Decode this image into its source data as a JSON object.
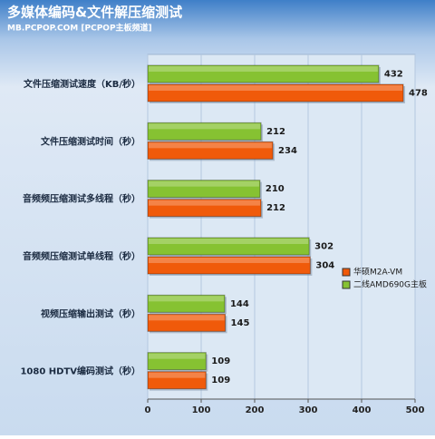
{
  "chart_data": {
    "type": "hbar",
    "title": "多媒体编码&文件解压缩测试",
    "subtitle": "MB.PCPOP.COM [PCPOP主板频道]",
    "categories": [
      "文件压缩测试速度（KB/秒）",
      "文件压缩测试时间（秒）",
      "音频频压缩测试多线程（秒）",
      "音频频压缩测试单线程（秒）",
      "视频压缩输出测试（秒）",
      "1080 HDTV编码测试（秒）"
    ],
    "series": [
      {
        "name": "华硕M2A-VM",
        "color": "#f05a0a",
        "values": [
          478,
          234,
          212,
          304,
          145,
          109
        ]
      },
      {
        "name": "二线AMD690G主板",
        "color": "#86c232",
        "values": [
          432,
          212,
          210,
          302,
          144,
          109
        ]
      }
    ],
    "xlim": [
      0,
      500
    ],
    "xticks": [
      0,
      100,
      200,
      300,
      400,
      500
    ],
    "grid": true,
    "legend": "right"
  }
}
